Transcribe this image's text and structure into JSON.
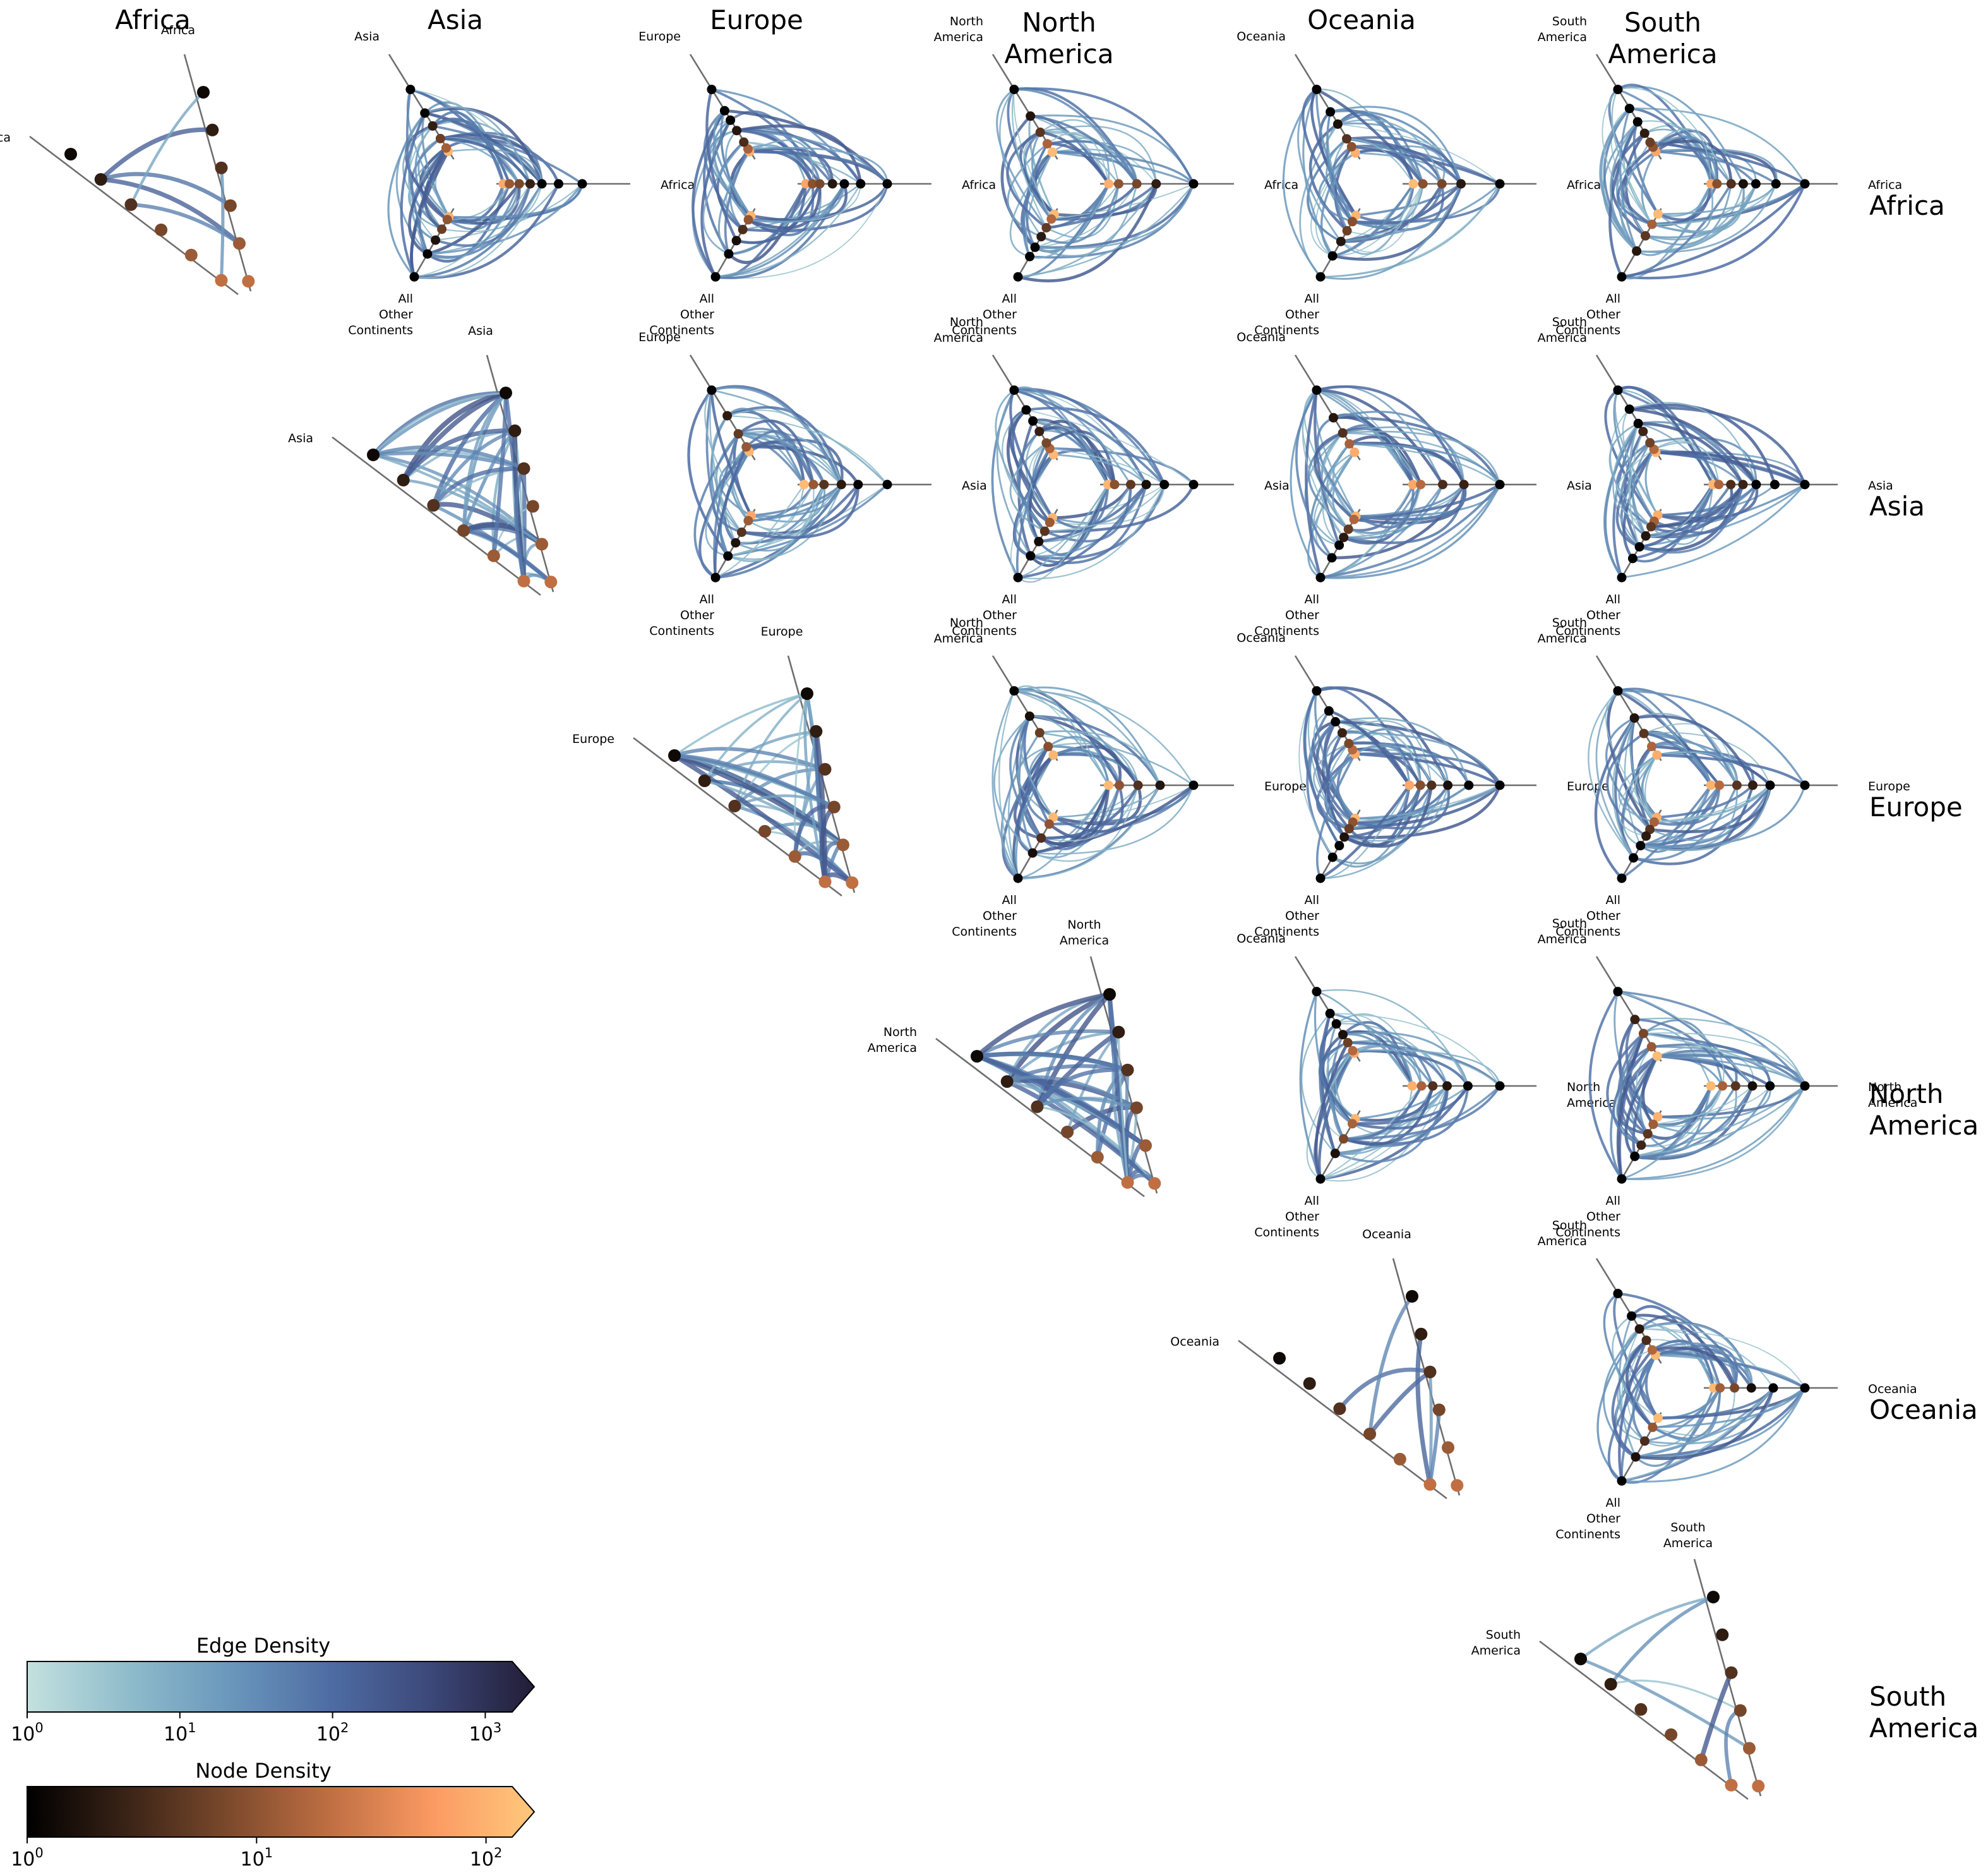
{
  "continents": [
    "Africa",
    "Asia",
    "Europe",
    "North America",
    "Oceania",
    "South America"
  ],
  "column_titles": [
    [
      "Africa"
    ],
    [
      "Asia"
    ],
    [
      "Europe"
    ],
    [
      "North",
      "America"
    ],
    [
      "Oceania"
    ],
    [
      "South",
      "America"
    ]
  ],
  "row_titles": [
    [
      "Africa"
    ],
    [
      "Asia"
    ],
    [
      "Europe"
    ],
    [
      "North",
      "America"
    ],
    [
      "Oceania"
    ],
    [
      "South",
      "America"
    ]
  ],
  "axis_labels": {
    "Africa": [
      "Africa"
    ],
    "Asia": [
      "Asia"
    ],
    "Europe": [
      "Europe"
    ],
    "North America": [
      "North",
      "America"
    ],
    "Oceania": [
      "Oceania"
    ],
    "South America": [
      "South",
      "America"
    ],
    "other": [
      "All",
      "Other",
      "Continents"
    ]
  },
  "colorbars": {
    "edge": {
      "label": "Edge Density",
      "scale": "log",
      "range": [
        1,
        1500
      ],
      "ticks": [
        {
          "base": "10",
          "exp": "0",
          "value": 1
        },
        {
          "base": "10",
          "exp": "1",
          "value": 10
        },
        {
          "base": "10",
          "exp": "2",
          "value": 100
        },
        {
          "base": "10",
          "exp": "3",
          "value": 1000
        }
      ],
      "colors": [
        "#c3e1df",
        "#8fbccb",
        "#6a97bc",
        "#4e6ca3",
        "#3b4778",
        "#221d36"
      ],
      "extend": "max"
    },
    "node": {
      "label": "Node Density",
      "scale": "log",
      "range": [
        1,
        130
      ],
      "ticks": [
        {
          "base": "10",
          "exp": "0",
          "value": 1
        },
        {
          "base": "10",
          "exp": "1",
          "value": 10
        },
        {
          "base": "10",
          "exp": "2",
          "value": 100
        }
      ],
      "colors": [
        "#000000",
        "#3b2417",
        "#7d4a2c",
        "#c06f43",
        "#fb9a63",
        "#ffc87c"
      ],
      "extend": "max"
    }
  },
  "chart_data": {
    "type": "hive-plot-grid",
    "description_of_layout": "upper-triangular grid of hive plots; column = first continent, row = second continent",
    "panels": [
      {
        "row": "Africa",
        "col": "Africa",
        "kind": "diagonal"
      },
      {
        "row": "Africa",
        "col": "Asia",
        "kind": "three-axis"
      },
      {
        "row": "Africa",
        "col": "Europe",
        "kind": "three-axis"
      },
      {
        "row": "Africa",
        "col": "North America",
        "kind": "three-axis"
      },
      {
        "row": "Africa",
        "col": "Oceania",
        "kind": "three-axis"
      },
      {
        "row": "Africa",
        "col": "South America",
        "kind": "three-axis"
      },
      {
        "row": "Asia",
        "col": "Asia",
        "kind": "diagonal"
      },
      {
        "row": "Asia",
        "col": "Europe",
        "kind": "three-axis"
      },
      {
        "row": "Asia",
        "col": "North America",
        "kind": "three-axis"
      },
      {
        "row": "Asia",
        "col": "Oceania",
        "kind": "three-axis"
      },
      {
        "row": "Asia",
        "col": "South America",
        "kind": "three-axis"
      },
      {
        "row": "Europe",
        "col": "Europe",
        "kind": "diagonal"
      },
      {
        "row": "Europe",
        "col": "North America",
        "kind": "three-axis"
      },
      {
        "row": "Europe",
        "col": "Oceania",
        "kind": "three-axis"
      },
      {
        "row": "Europe",
        "col": "South America",
        "kind": "three-axis"
      },
      {
        "row": "North America",
        "col": "North America",
        "kind": "diagonal"
      },
      {
        "row": "North America",
        "col": "Oceania",
        "kind": "three-axis"
      },
      {
        "row": "North America",
        "col": "South America",
        "kind": "three-axis"
      },
      {
        "row": "Oceania",
        "col": "Oceania",
        "kind": "diagonal"
      },
      {
        "row": "Oceania",
        "col": "South America",
        "kind": "three-axis"
      },
      {
        "row": "South America",
        "col": "South America",
        "kind": "diagonal"
      }
    ]
  }
}
